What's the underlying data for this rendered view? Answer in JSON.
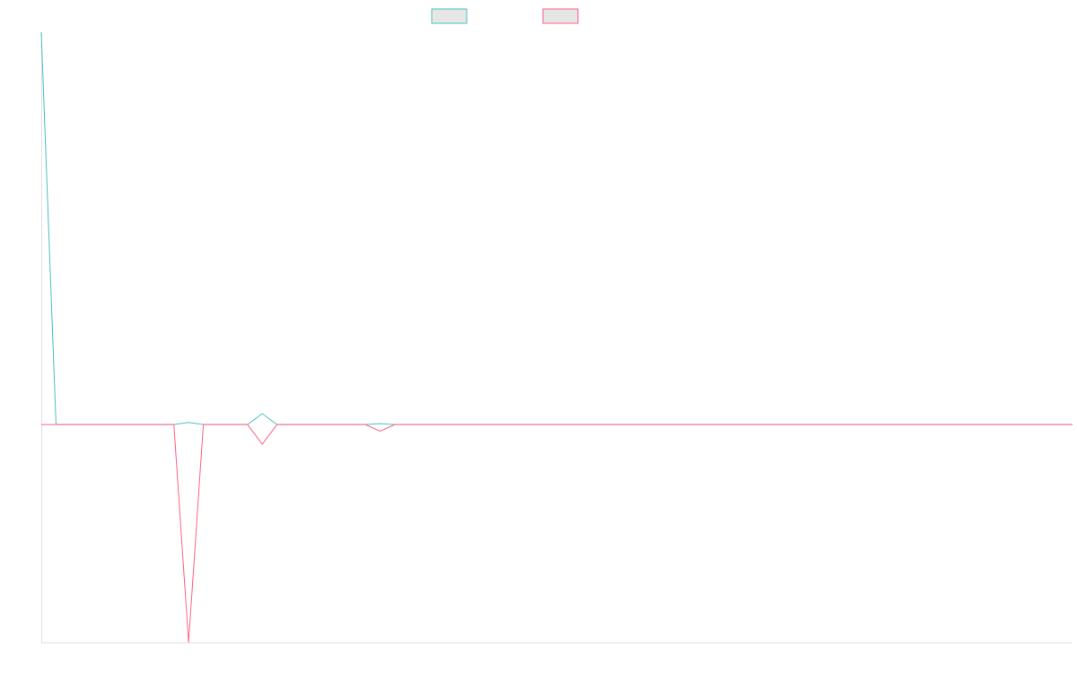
{
  "colors": {
    "series_a": "#4bc0c0",
    "series_b": "#ff6384",
    "legend_fill": "#e6e6e6",
    "axis": "#e0e0e0",
    "background": "#ffffff"
  },
  "legend": {
    "placement": "top-center",
    "labels": [
      "",
      ""
    ]
  },
  "chart_data": {
    "type": "line",
    "title": "",
    "xlabel": "",
    "ylabel": "",
    "grid": false,
    "x": [
      0,
      1,
      2,
      3,
      4,
      5,
      6,
      7,
      8,
      9,
      10,
      11,
      12,
      13,
      14,
      15,
      16,
      17,
      18,
      19,
      20,
      21,
      22,
      23,
      24,
      25,
      26,
      27,
      28,
      29,
      30,
      31,
      32,
      33,
      34,
      35,
      36,
      37,
      38,
      39,
      40,
      41,
      42,
      43,
      44,
      45,
      46,
      47,
      48,
      49,
      50,
      51,
      52,
      53,
      54,
      55,
      56,
      57,
      58,
      59,
      60,
      61,
      62,
      63,
      64,
      65,
      66,
      67,
      68,
      69,
      70
    ],
    "xlim": [
      0,
      70
    ],
    "ylim": [
      -0.5,
      0.9
    ],
    "series": [
      {
        "name": "",
        "color": "#4bc0c0",
        "values": [
          0.9,
          0,
          0,
          0,
          0,
          0,
          0,
          0,
          0,
          0,
          0.005,
          0,
          0,
          0,
          0,
          0.025,
          0,
          0,
          0,
          0,
          0,
          0,
          0,
          0.002,
          0,
          0,
          0,
          0,
          0,
          0,
          0,
          0,
          0,
          0,
          0,
          0,
          0,
          0,
          0,
          0,
          0,
          0,
          0,
          0,
          0,
          0,
          0,
          0,
          0,
          0,
          0,
          0,
          0,
          0,
          0,
          0,
          0,
          0,
          0,
          0,
          0,
          0,
          0,
          0,
          0,
          0,
          0,
          0,
          0,
          0,
          0
        ]
      },
      {
        "name": "",
        "color": "#ff6384",
        "values": [
          0,
          0,
          0,
          0,
          0,
          0,
          0,
          0,
          0,
          0,
          -0.5,
          0,
          0,
          0,
          0,
          -0.045,
          0,
          0,
          0,
          0,
          0,
          0,
          0,
          -0.015,
          0,
          0,
          0,
          0,
          0,
          0,
          0,
          0,
          0,
          0,
          0,
          0,
          0,
          0,
          0,
          0,
          0,
          0,
          0,
          0,
          0,
          0,
          0,
          0,
          0,
          0,
          0,
          0,
          0,
          0,
          0,
          0,
          0,
          0,
          0,
          0,
          0,
          0,
          0,
          0,
          0,
          0,
          0,
          0,
          0,
          0,
          0
        ]
      }
    ]
  }
}
